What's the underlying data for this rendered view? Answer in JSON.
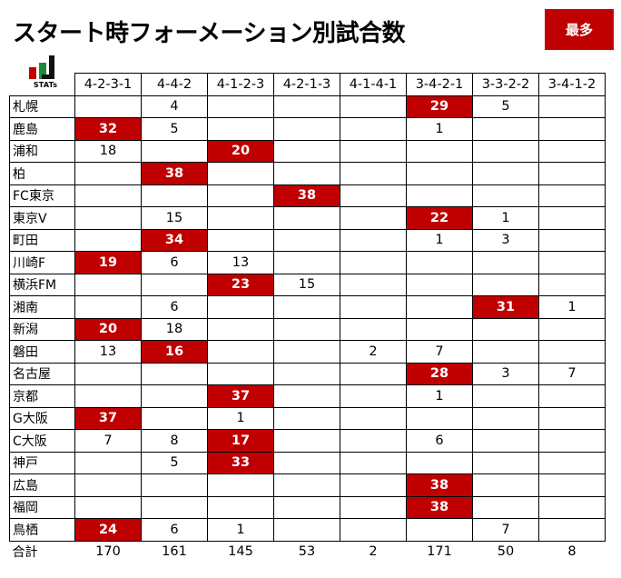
{
  "title": "スタート時フォーメーション別試合数",
  "legend_label": "最多",
  "logo_text": "STATs",
  "colors": {
    "highlight": "#c00000"
  },
  "chart_data": {
    "type": "table",
    "title": "スタート時フォーメーション別試合数",
    "columns": [
      "4-2-3-1",
      "4-4-2",
      "4-1-2-3",
      "4-2-1-3",
      "4-1-4-1",
      "3-4-2-1",
      "3-3-2-2",
      "3-4-1-2"
    ],
    "rows": [
      {
        "team": "札幌",
        "values": [
          null,
          4,
          null,
          null,
          null,
          29,
          5,
          null
        ],
        "max_index": 5
      },
      {
        "team": "鹿島",
        "values": [
          32,
          5,
          null,
          null,
          null,
          1,
          null,
          null
        ],
        "max_index": 0
      },
      {
        "team": "浦和",
        "values": [
          18,
          null,
          20,
          null,
          null,
          null,
          null,
          null
        ],
        "max_index": 2
      },
      {
        "team": "柏",
        "values": [
          null,
          38,
          null,
          null,
          null,
          null,
          null,
          null
        ],
        "max_index": 1
      },
      {
        "team": "FC東京",
        "values": [
          null,
          null,
          null,
          38,
          null,
          null,
          null,
          null
        ],
        "max_index": 3
      },
      {
        "team": "東京V",
        "values": [
          null,
          15,
          null,
          null,
          null,
          22,
          1,
          null
        ],
        "max_index": 5
      },
      {
        "team": "町田",
        "values": [
          null,
          34,
          null,
          null,
          null,
          1,
          3,
          null
        ],
        "max_index": 1
      },
      {
        "team": "川崎F",
        "values": [
          19,
          6,
          13,
          null,
          null,
          null,
          null,
          null
        ],
        "max_index": 0
      },
      {
        "team": "横浜FM",
        "values": [
          null,
          null,
          23,
          15,
          null,
          null,
          null,
          null
        ],
        "max_index": 2
      },
      {
        "team": "湘南",
        "values": [
          null,
          6,
          null,
          null,
          null,
          null,
          31,
          1
        ],
        "max_index": 6
      },
      {
        "team": "新潟",
        "values": [
          20,
          18,
          null,
          null,
          null,
          null,
          null,
          null
        ],
        "max_index": 0
      },
      {
        "team": "磐田",
        "values": [
          13,
          16,
          null,
          null,
          2,
          7,
          null,
          null
        ],
        "max_index": 1
      },
      {
        "team": "名古屋",
        "values": [
          null,
          null,
          null,
          null,
          null,
          28,
          3,
          7
        ],
        "max_index": 5
      },
      {
        "team": "京都",
        "values": [
          null,
          null,
          37,
          null,
          null,
          1,
          null,
          null
        ],
        "max_index": 2
      },
      {
        "team": "G大阪",
        "values": [
          37,
          null,
          1,
          null,
          null,
          null,
          null,
          null
        ],
        "max_index": 0
      },
      {
        "team": "C大阪",
        "values": [
          7,
          8,
          17,
          null,
          null,
          6,
          null,
          null
        ],
        "max_index": 2
      },
      {
        "team": "神戸",
        "values": [
          null,
          5,
          33,
          null,
          null,
          null,
          null,
          null
        ],
        "max_index": 2
      },
      {
        "team": "広島",
        "values": [
          null,
          null,
          null,
          null,
          null,
          38,
          null,
          null
        ],
        "max_index": 5
      },
      {
        "team": "福岡",
        "values": [
          null,
          null,
          null,
          null,
          null,
          38,
          null,
          null
        ],
        "max_index": 5
      },
      {
        "team": "鳥栖",
        "values": [
          24,
          6,
          1,
          null,
          null,
          null,
          7,
          null
        ],
        "max_index": 0
      }
    ],
    "totals": {
      "label": "合計",
      "values": [
        170,
        161,
        145,
        53,
        2,
        171,
        50,
        8
      ]
    }
  }
}
